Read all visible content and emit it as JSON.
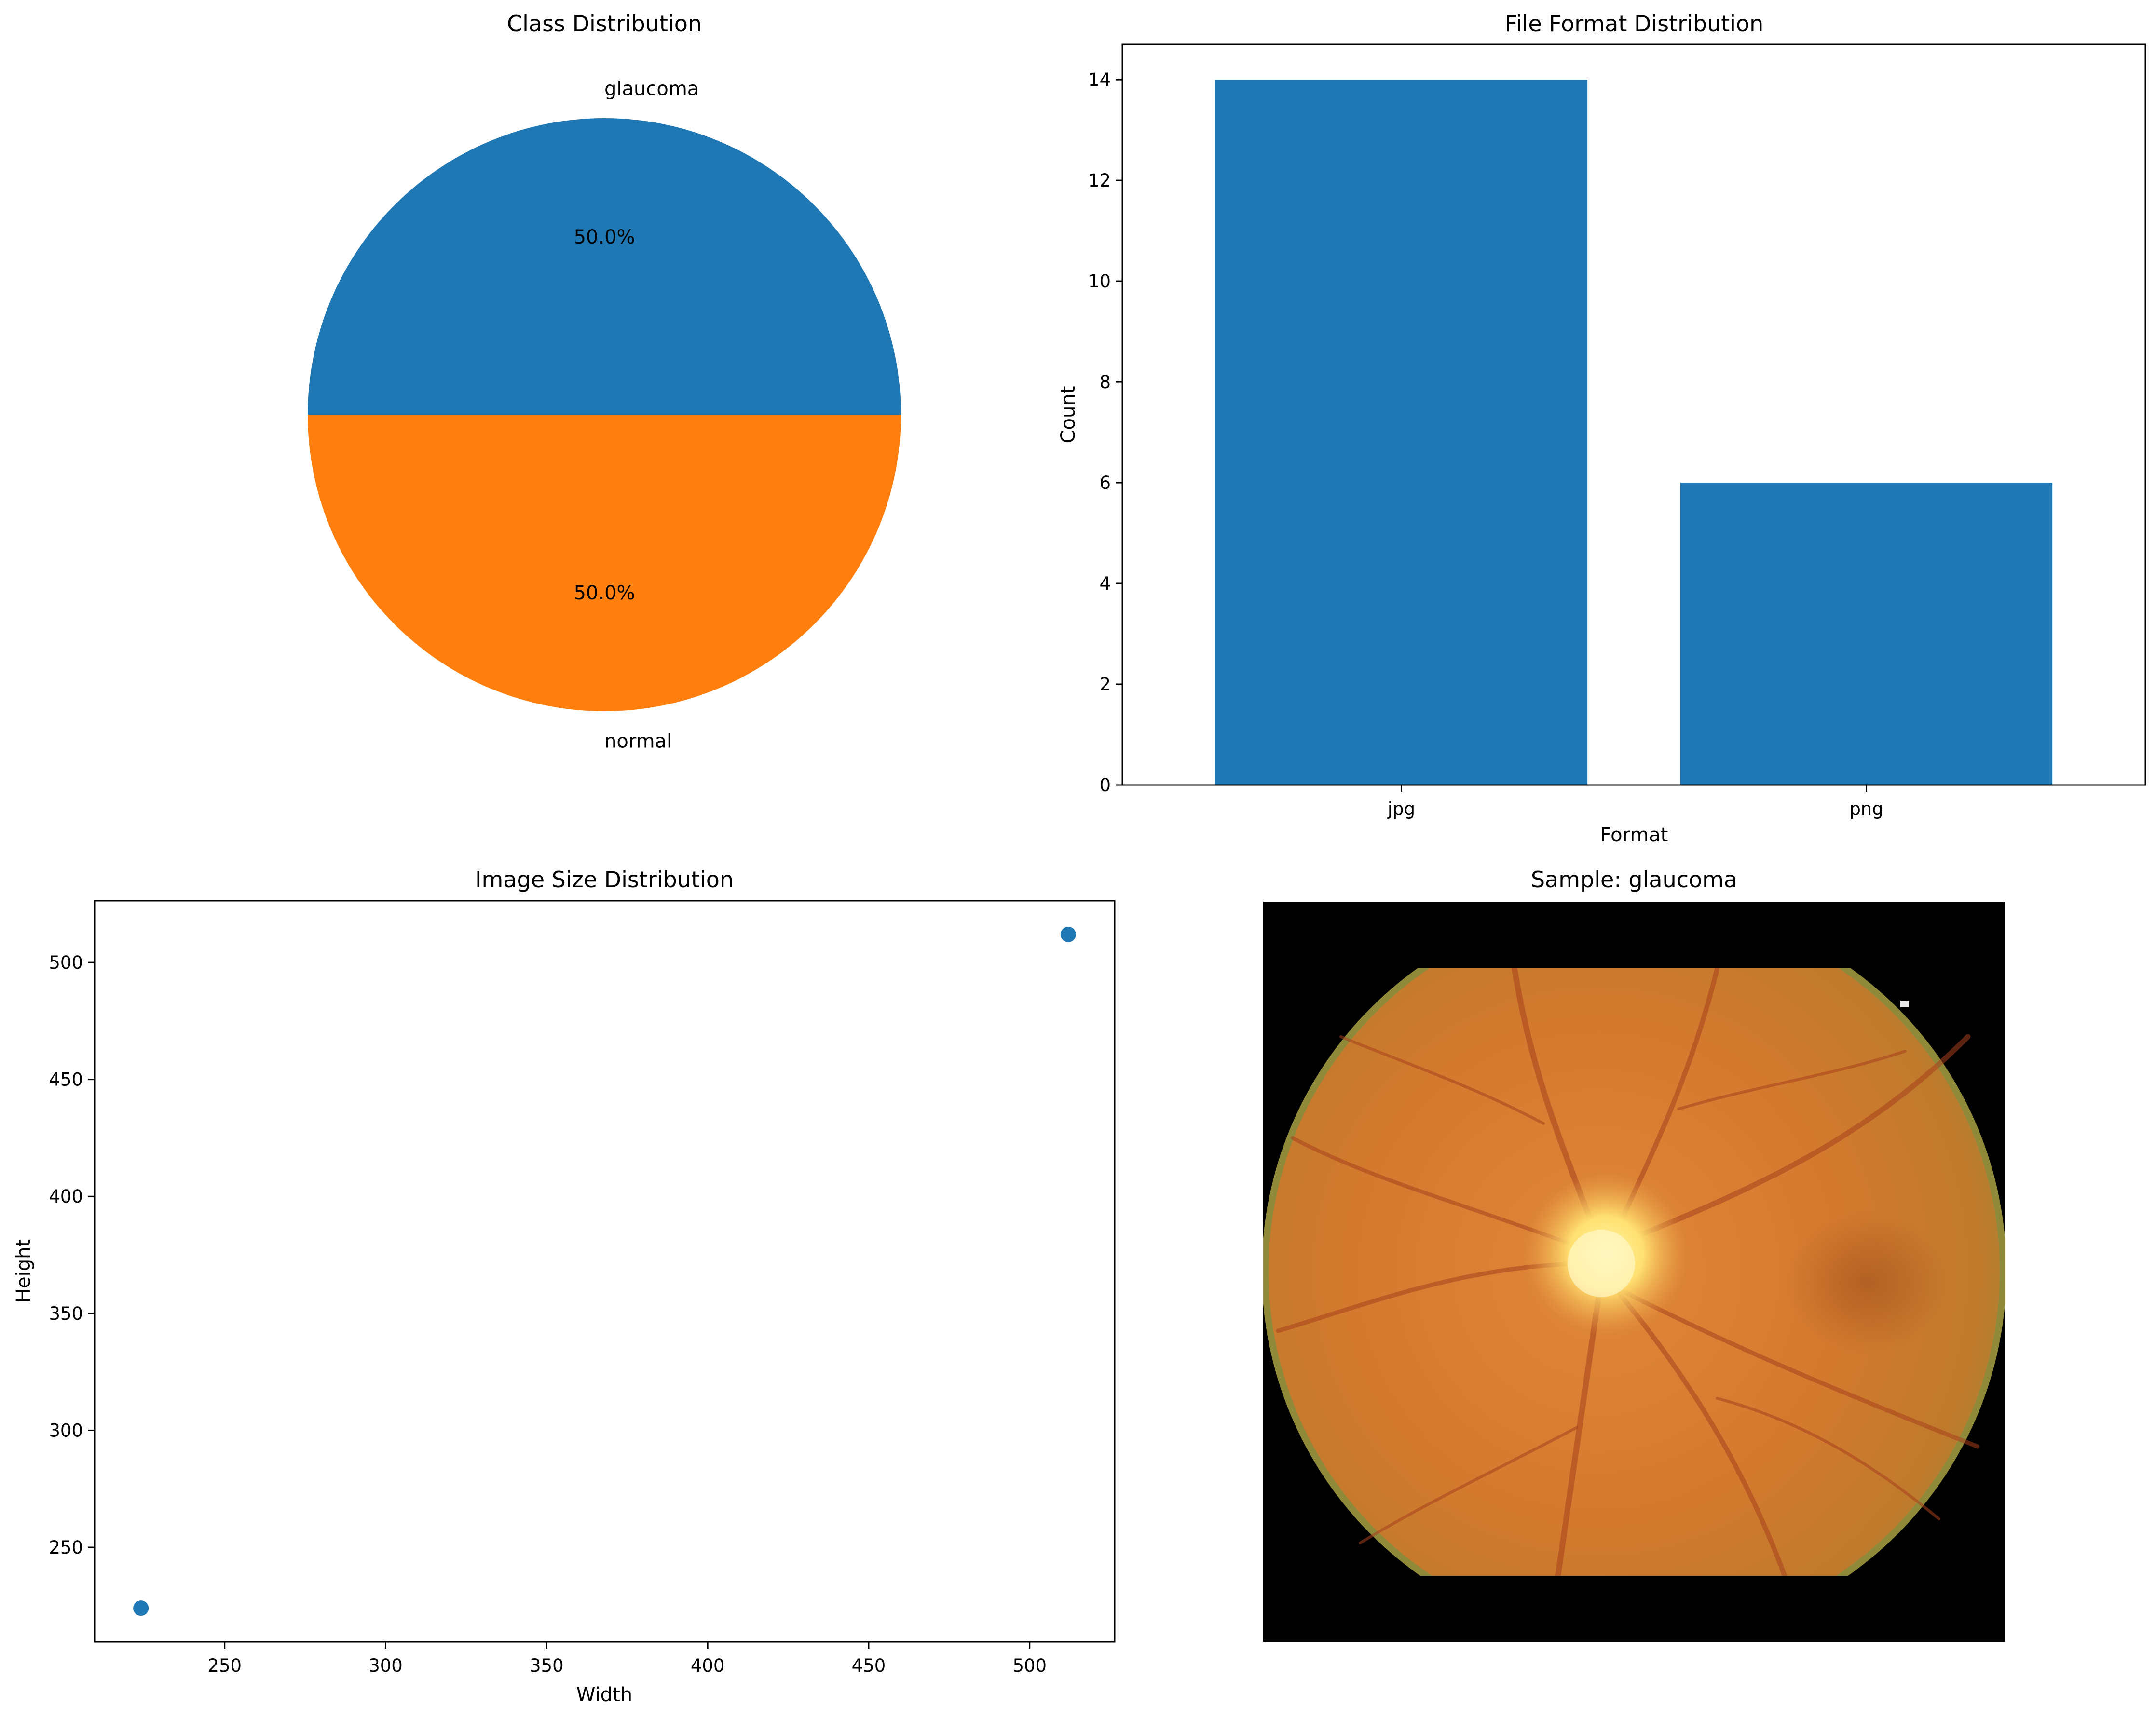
{
  "figure": {
    "background": "#ffffff"
  },
  "colors": {
    "blue": "#1f77b4",
    "orange": "#ff7f0e"
  },
  "chart_data": [
    {
      "type": "pie",
      "title": "Class Distribution",
      "labels": [
        "glaucoma",
        "normal"
      ],
      "values": [
        50.0,
        50.0
      ],
      "autopct": [
        "50.0%",
        "50.0%"
      ],
      "colors": [
        "#1f77b4",
        "#ff7f0e"
      ]
    },
    {
      "type": "bar",
      "title": "File Format Distribution",
      "categories": [
        "jpg",
        "png"
      ],
      "values": [
        14,
        6
      ],
      "xlabel": "Format",
      "ylabel": "Count",
      "ylim": [
        0,
        14.7
      ],
      "yticks": [
        0,
        2,
        4,
        6,
        8,
        10,
        12,
        14
      ],
      "color": "#1f77b4"
    },
    {
      "type": "scatter",
      "title": "Image Size Distribution",
      "x": [
        224,
        512
      ],
      "y": [
        224,
        512
      ],
      "xlabel": "Width",
      "ylabel": "Height",
      "xlim": [
        209.6,
        526.4
      ],
      "ylim": [
        209.6,
        526.4
      ],
      "xticks": [
        250,
        300,
        350,
        400,
        450,
        500
      ],
      "yticks": [
        250,
        300,
        350,
        400,
        450,
        500
      ],
      "color": "#1f77b4"
    },
    {
      "type": "image",
      "title": "Sample: glaucoma"
    }
  ]
}
